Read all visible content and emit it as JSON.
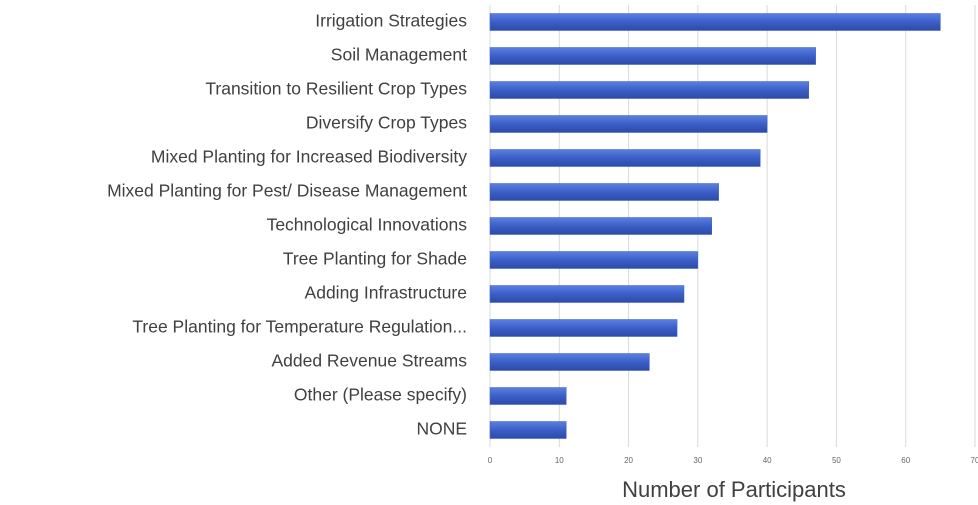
{
  "chart_data": {
    "type": "hbar",
    "categories": [
      "Irrigation Strategies",
      "Soil Management",
      "Transition to Resilient Crop Types",
      "Diversify  Crop Types",
      "Mixed Planting for Increased Biodiversity",
      "Mixed Planting for Pest/ Disease Management",
      "Technological Innovations",
      "Tree Planting for Shade",
      "Adding Infrastructure",
      "Tree Planting for Temperature Regulation...",
      "Added Revenue Streams",
      "Other (Please specify)",
      "NONE"
    ],
    "values": [
      65,
      47,
      46,
      40,
      39,
      33,
      32,
      30,
      28,
      27,
      23,
      11,
      11
    ],
    "color": "#3b5fc6",
    "xlabel": "Number of Participants",
    "xlim": [
      0,
      70
    ],
    "xticks": [
      0,
      10,
      20,
      30,
      40,
      50,
      60,
      70
    ],
    "grid": true
  }
}
